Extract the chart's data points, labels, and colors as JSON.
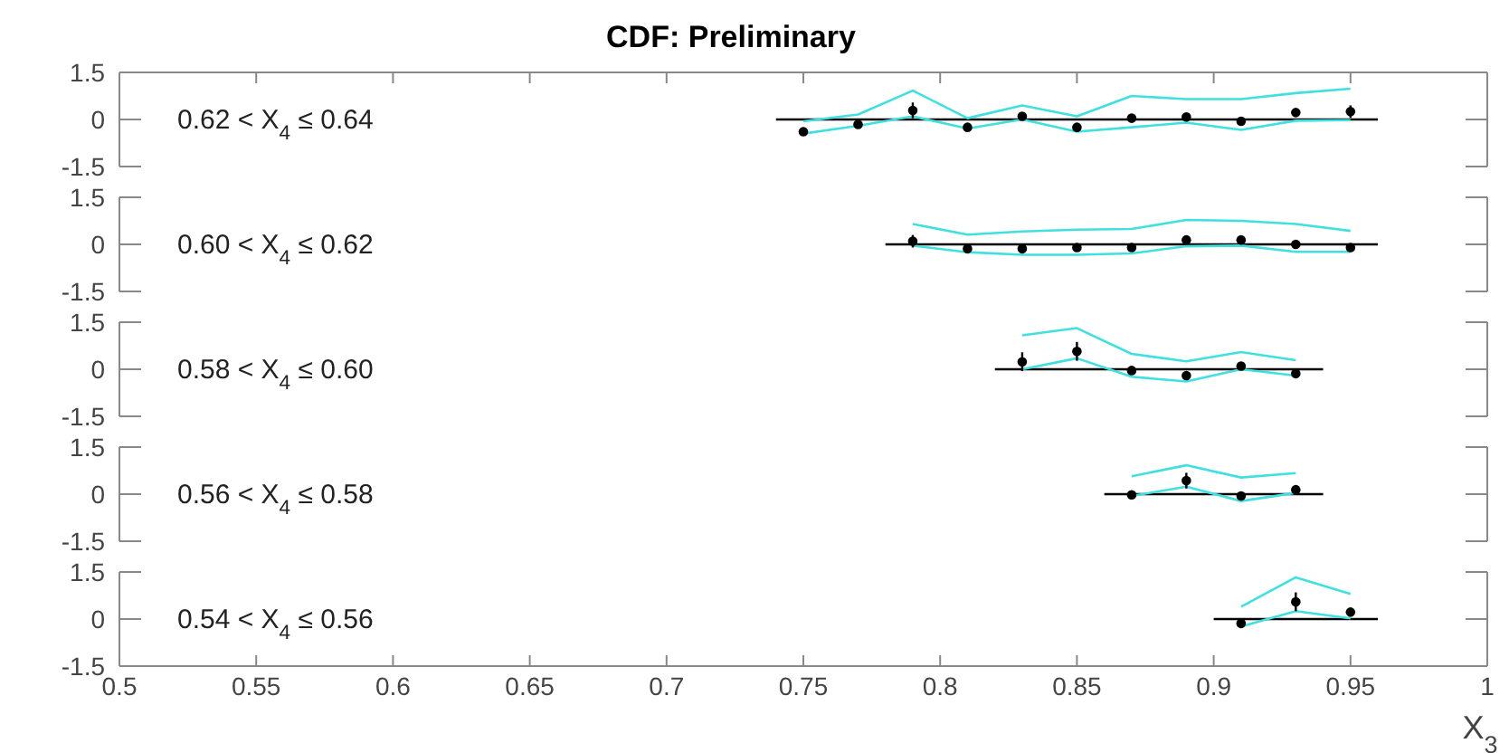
{
  "chart_data": [
    {
      "type": "scatter",
      "title": "CDF: Preliminary",
      "annotations": [
        "0.62 < X$_{4}$ ≤ 0.64"
      ],
      "xlim": [
        0.5,
        1
      ],
      "xticks": [
        0.5,
        0.55,
        0.6,
        0.65,
        0.7,
        0.75,
        0.8,
        0.85,
        0.9,
        0.95,
        1
      ],
      "ylim": [
        -1.5,
        1.5
      ],
      "yticks": [
        -1.5,
        0,
        1.5
      ],
      "tick_labels": "y",
      "series": [
        {
          "type": "line",
          "marker": "none",
          "color": "#000000",
          "x": [
            0.74,
            0.96
          ],
          "values": [
            0,
            0
          ]
        },
        {
          "type": "line",
          "marker": "none",
          "color": "#40e0e0",
          "x": [
            0.75,
            0.77,
            0.79,
            0.81,
            0.83,
            0.85,
            0.87,
            0.89,
            0.91,
            0.93,
            0.95
          ],
          "values": [
            -0.06,
            0.16,
            0.92,
            0.04,
            0.45,
            0.1,
            0.75,
            0.65,
            0.65,
            0.84,
            0.98
          ]
        },
        {
          "type": "line",
          "marker": "none",
          "color": "#40e0e0",
          "x": [
            0.75,
            0.77,
            0.79,
            0.81,
            0.83,
            0.85,
            0.87,
            0.89,
            0.91,
            0.93,
            0.95
          ],
          "values": [
            -0.45,
            -0.2,
            0.1,
            -0.29,
            0,
            -0.39,
            -0.25,
            -0.1,
            -0.33,
            -0.04,
            -0.02
          ]
        },
        {
          "marker": "circle",
          "color": "#000000",
          "x": [
            0.75,
            0.77,
            0.79,
            0.81,
            0.83,
            0.85,
            0.87,
            0.89,
            0.91,
            0.93,
            0.95
          ],
          "values": [
            -0.39,
            -0.16,
            0.29,
            -0.25,
            0.1,
            -0.25,
            0.04,
            0.08,
            -0.06,
            0.22,
            0.25
          ],
          "errors": [
            null,
            null,
            0.25,
            null,
            null,
            null,
            null,
            null,
            null,
            null,
            0.2
          ]
        }
      ]
    },
    {
      "type": "scatter",
      "annotations": [
        "0.60 < X$_{4}$ ≤ 0.62"
      ],
      "xlim": [
        0.5,
        1
      ],
      "xticks": [
        0.5,
        0.55,
        0.6,
        0.65,
        0.7,
        0.75,
        0.8,
        0.85,
        0.9,
        0.95,
        1
      ],
      "ylim": [
        -1.5,
        1.5
      ],
      "yticks": [
        -1.5,
        0,
        1.5
      ],
      "tick_labels": "y",
      "series": [
        {
          "type": "line",
          "marker": "none",
          "color": "#000000",
          "x": [
            0.78,
            0.96
          ],
          "values": [
            0,
            0
          ]
        },
        {
          "type": "line",
          "marker": "none",
          "color": "#40e0e0",
          "x": [
            0.79,
            0.81,
            0.83,
            0.85,
            0.87,
            0.89,
            0.91,
            0.93,
            0.95
          ],
          "values": [
            0.65,
            0.31,
            0.41,
            0.47,
            0.49,
            0.78,
            0.75,
            0.65,
            0.43
          ]
        },
        {
          "type": "line",
          "marker": "none",
          "color": "#40e0e0",
          "x": [
            0.79,
            0.81,
            0.83,
            0.85,
            0.87,
            0.89,
            0.91,
            0.93,
            0.95
          ],
          "values": [
            -0.04,
            -0.25,
            -0.33,
            -0.33,
            -0.29,
            -0.06,
            -0.04,
            -0.24,
            -0.24
          ]
        },
        {
          "marker": "circle",
          "color": "#000000",
          "x": [
            0.79,
            0.81,
            0.83,
            0.85,
            0.87,
            0.89,
            0.91,
            0.93,
            0.95
          ],
          "values": [
            0.1,
            -0.14,
            -0.14,
            -0.1,
            -0.1,
            0.14,
            0.14,
            0,
            -0.1
          ],
          "errors": [
            0.2,
            null,
            null,
            null,
            null,
            null,
            null,
            null,
            null
          ]
        }
      ]
    },
    {
      "type": "scatter",
      "annotations": [
        "0.58 < X$_{4}$ ≤ 0.60"
      ],
      "xlim": [
        0.5,
        1
      ],
      "xticks": [
        0.5,
        0.55,
        0.6,
        0.65,
        0.7,
        0.75,
        0.8,
        0.85,
        0.9,
        0.95,
        1
      ],
      "ylim": [
        -1.5,
        1.5
      ],
      "yticks": [
        -1.5,
        0,
        1.5
      ],
      "tick_labels": "y",
      "series": [
        {
          "type": "line",
          "marker": "none",
          "color": "#000000",
          "x": [
            0.82,
            0.94
          ],
          "values": [
            0,
            0
          ]
        },
        {
          "type": "line",
          "marker": "none",
          "color": "#40e0e0",
          "x": [
            0.83,
            0.85,
            0.87,
            0.89,
            0.91,
            0.93
          ],
          "values": [
            1.08,
            1.31,
            0.49,
            0.25,
            0.55,
            0.29
          ]
        },
        {
          "type": "line",
          "marker": "none",
          "color": "#40e0e0",
          "x": [
            0.83,
            0.85,
            0.87,
            0.89,
            0.91,
            0.93
          ],
          "values": [
            0,
            0.35,
            -0.24,
            -0.39,
            0,
            -0.2
          ]
        },
        {
          "marker": "circle",
          "color": "#000000",
          "x": [
            0.83,
            0.85,
            0.87,
            0.89,
            0.91,
            0.93
          ],
          "values": [
            0.24,
            0.57,
            -0.04,
            -0.2,
            0.1,
            -0.14
          ],
          "errors": [
            0.3,
            0.3,
            null,
            null,
            null,
            null
          ]
        }
      ]
    },
    {
      "type": "scatter",
      "annotations": [
        "0.56 < X$_{4}$ ≤ 0.58"
      ],
      "xlim": [
        0.5,
        1
      ],
      "xticks": [
        0.5,
        0.55,
        0.6,
        0.65,
        0.7,
        0.75,
        0.8,
        0.85,
        0.9,
        0.95,
        1
      ],
      "ylim": [
        -1.5,
        1.5
      ],
      "yticks": [
        -1.5,
        0,
        1.5
      ],
      "tick_labels": "y",
      "series": [
        {
          "type": "line",
          "marker": "none",
          "color": "#000000",
          "x": [
            0.86,
            0.94
          ],
          "values": [
            0,
            0
          ]
        },
        {
          "type": "line",
          "marker": "none",
          "color": "#40e0e0",
          "x": [
            0.87,
            0.89,
            0.91,
            0.93
          ],
          "values": [
            0.57,
            0.92,
            0.53,
            0.67
          ]
        },
        {
          "type": "line",
          "marker": "none",
          "color": "#40e0e0",
          "x": [
            0.87,
            0.89,
            0.91,
            0.93
          ],
          "values": [
            -0.06,
            0.24,
            -0.22,
            0.04
          ]
        },
        {
          "marker": "circle",
          "color": "#000000",
          "x": [
            0.87,
            0.89,
            0.91,
            0.93
          ],
          "values": [
            -0.02,
            0.43,
            -0.06,
            0.14
          ],
          "errors": [
            null,
            0.25,
            null,
            null
          ]
        }
      ]
    },
    {
      "type": "scatter",
      "xlabel": "X$_{3}$",
      "annotations": [
        "0.54 < X$_{4}$ ≤ 0.56"
      ],
      "xlim": [
        0.5,
        1
      ],
      "xticks": [
        0.5,
        0.55,
        0.6,
        0.65,
        0.7,
        0.75,
        0.8,
        0.85,
        0.9,
        0.95,
        1
      ],
      "ylim": [
        -1.5,
        1.5
      ],
      "yticks": [
        -1.5,
        0,
        1.5
      ],
      "series": [
        {
          "type": "line",
          "marker": "none",
          "color": "#000000",
          "x": [
            0.9,
            0.96
          ],
          "values": [
            0,
            0
          ]
        },
        {
          "type": "line",
          "marker": "none",
          "color": "#40e0e0",
          "x": [
            0.91,
            0.93,
            0.95
          ],
          "values": [
            0.39,
            1.33,
            0.8
          ]
        },
        {
          "type": "line",
          "marker": "none",
          "color": "#40e0e0",
          "x": [
            0.91,
            0.93,
            0.95
          ],
          "values": [
            -0.24,
            0.25,
            0.02
          ]
        },
        {
          "marker": "circle",
          "color": "#000000",
          "x": [
            0.91,
            0.93,
            0.95
          ],
          "values": [
            -0.14,
            0.55,
            0.22
          ],
          "errors": [
            null,
            0.3,
            null
          ]
        }
      ]
    }
  ]
}
